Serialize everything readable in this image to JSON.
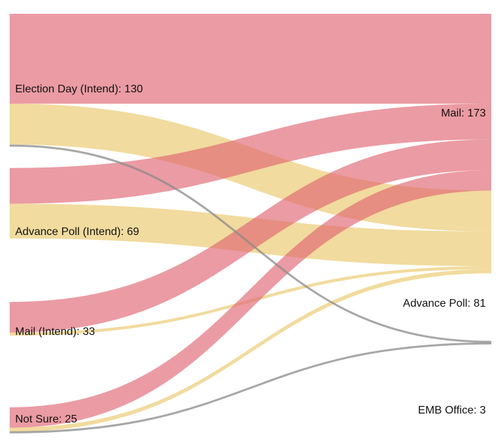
{
  "colors": {
    "mail": "#E06672",
    "advance_poll": "#E9C86A",
    "emb_office": "#8A8A8A"
  },
  "sources": [
    {
      "id": "election_day",
      "label": "Election Day (Intend): 130",
      "value": 130
    },
    {
      "id": "advance_poll_intend",
      "label": "Advance Poll (Intend): 69",
      "value": 69
    },
    {
      "id": "mail_intend",
      "label": "Mail (Intend): 33",
      "value": 33
    },
    {
      "id": "not_sure",
      "label": "Not Sure: 25",
      "value": 25
    }
  ],
  "targets": [
    {
      "id": "mail",
      "label": "Mail: 173",
      "value": 173
    },
    {
      "id": "advance_poll",
      "label": "Advance Poll: 81",
      "value": 81
    },
    {
      "id": "emb_office",
      "label": "EMB Office: 3",
      "value": 3
    }
  ],
  "links": [
    {
      "source": "election_day",
      "target": "mail",
      "value": 88
    },
    {
      "source": "election_day",
      "target": "advance_poll",
      "value": 40
    },
    {
      "source": "election_day",
      "target": "emb_office",
      "value": 2
    },
    {
      "source": "advance_poll_intend",
      "target": "mail",
      "value": 35
    },
    {
      "source": "advance_poll_intend",
      "target": "advance_poll",
      "value": 34
    },
    {
      "source": "mail_intend",
      "target": "mail",
      "value": 30
    },
    {
      "source": "mail_intend",
      "target": "advance_poll",
      "value": 3
    },
    {
      "source": "not_sure",
      "target": "mail",
      "value": 20
    },
    {
      "source": "not_sure",
      "target": "advance_poll",
      "value": 4
    },
    {
      "source": "not_sure",
      "target": "emb_office",
      "value": 1
    }
  ]
}
